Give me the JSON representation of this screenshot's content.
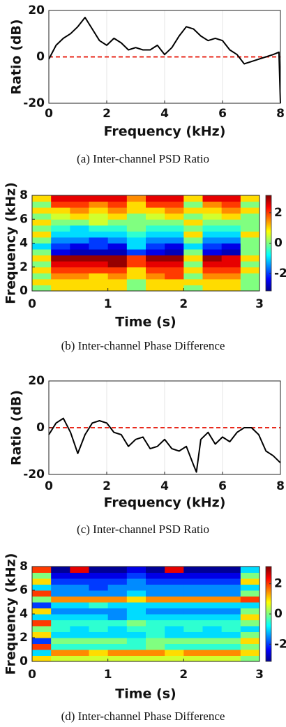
{
  "chart_data": [
    {
      "type": "line",
      "caption": "(a) Inter-channel PSD Ratio",
      "xlabel": "Frequency (kHz)",
      "ylabel": "Ratio (dB)",
      "x": [
        0,
        0.25,
        0.5,
        0.75,
        1,
        1.25,
        1.5,
        1.75,
        2,
        2.25,
        2.5,
        2.75,
        3,
        3.25,
        3.5,
        3.75,
        4,
        4.25,
        4.5,
        4.75,
        5,
        5.25,
        5.5,
        5.75,
        6,
        6.25,
        6.5,
        6.75,
        7,
        7.25,
        7.5,
        7.75,
        7.95,
        8
      ],
      "values": [
        -1,
        5,
        8,
        10,
        13,
        17,
        12,
        7,
        5,
        8,
        6,
        3,
        4,
        3,
        3,
        5,
        1,
        4,
        9,
        13,
        12,
        9,
        7,
        8,
        7,
        3,
        1,
        -3,
        -2,
        -1,
        0,
        1,
        2,
        -20
      ],
      "color": "#000000",
      "reference_line": 0,
      "reference_color": "#e8291c",
      "xlim": [
        0,
        8
      ],
      "xticks": [
        0,
        2,
        4,
        6,
        8
      ],
      "ylim": [
        -20,
        20
      ],
      "yticks": [
        -20,
        0,
        20
      ],
      "grid": true
    },
    {
      "type": "heatmap",
      "caption": "(b) Inter-channel Phase Difference",
      "xlabel": "Time (s)",
      "ylabel": "Frequency (kHz)",
      "xlim": [
        0,
        3
      ],
      "xticks": [
        0,
        1,
        2,
        3
      ],
      "ylim": [
        0,
        8
      ],
      "yticks": [
        0,
        2,
        4,
        6,
        8
      ],
      "clim": [
        -3.14,
        3.14
      ],
      "cbar_ticks": [
        -2,
        0,
        2
      ],
      "colormap": "jet",
      "values": [
        [
          0,
          1,
          1,
          1,
          1,
          0,
          1,
          1,
          0,
          1,
          1,
          0
        ],
        [
          1,
          1,
          1,
          1,
          1,
          0,
          1,
          1,
          1,
          1,
          1,
          0
        ],
        [
          0,
          1.5,
          1.5,
          1,
          1.5,
          1,
          1.5,
          2,
          0,
          1.5,
          1.5,
          0
        ],
        [
          1,
          2,
          2,
          2,
          2,
          1,
          2,
          2,
          1,
          2,
          2,
          1
        ],
        [
          0,
          2.5,
          2.5,
          2.5,
          3,
          2,
          2.5,
          2.5,
          0,
          2.5,
          2.5,
          0
        ],
        [
          1,
          3,
          3,
          3,
          3,
          2,
          3,
          3,
          1,
          3,
          2.5,
          1
        ],
        [
          0,
          -2.5,
          -2.8,
          -2.8,
          -2.8,
          -2,
          -2.5,
          -2.8,
          0,
          -2.5,
          -2.8,
          0
        ],
        [
          -1,
          -2,
          -2.5,
          -2,
          -2.5,
          -1,
          -2,
          -2.5,
          -1,
          -2,
          -2.5,
          0
        ],
        [
          0,
          -1.5,
          -1.5,
          -2,
          -1.5,
          -1,
          -1.5,
          -1.5,
          0,
          -1.5,
          -1.5,
          0
        ],
        [
          1,
          -1,
          -1,
          -1,
          -1,
          -0.5,
          -1,
          -1,
          1,
          -1,
          -1,
          1
        ],
        [
          0,
          -0.5,
          -1,
          -0.5,
          -0.5,
          0,
          -0.5,
          -0.5,
          0,
          -0.5,
          -0.5,
          0
        ],
        [
          1,
          0,
          0,
          0.5,
          0,
          0,
          0,
          0,
          1,
          0,
          0,
          0
        ],
        [
          0,
          0.5,
          1,
          0.5,
          1,
          0,
          0.5,
          1,
          0,
          0.5,
          1,
          0
        ],
        [
          1,
          1,
          1.5,
          1,
          1.5,
          1,
          1,
          1.5,
          1,
          1,
          1.5,
          1
        ],
        [
          0,
          2,
          2,
          1.5,
          2,
          1,
          2,
          2,
          0,
          1.5,
          2,
          0
        ],
        [
          1,
          2.5,
          2.5,
          2.5,
          2.5,
          1.5,
          2.5,
          2.5,
          1,
          2.5,
          2.5,
          1
        ]
      ]
    },
    {
      "type": "line",
      "caption": "(c) Inter-channel PSD Ratio",
      "xlabel": "Frequency (kHz)",
      "ylabel": "Ratio (dB)",
      "x": [
        0,
        0.25,
        0.5,
        0.75,
        1,
        1.25,
        1.5,
        1.75,
        2,
        2.25,
        2.5,
        2.75,
        3,
        3.25,
        3.5,
        3.75,
        4,
        4.25,
        4.5,
        4.75,
        5,
        5.1,
        5.25,
        5.5,
        5.75,
        6,
        6.25,
        6.5,
        6.75,
        7,
        7.25,
        7.5,
        7.75,
        8
      ],
      "values": [
        -3,
        2,
        4,
        -2,
        -11,
        -3,
        2,
        3,
        2,
        -2,
        -3,
        -8,
        -5,
        -4,
        -9,
        -8,
        -5,
        -9,
        -10,
        -8,
        -16,
        -19,
        -5,
        -2,
        -7,
        -4,
        -6,
        -2,
        0,
        0,
        -3,
        -10,
        -12,
        -15
      ],
      "color": "#000000",
      "reference_line": 0,
      "reference_color": "#e8291c",
      "xlim": [
        0,
        8
      ],
      "xticks": [
        0,
        2,
        4,
        6,
        8
      ],
      "ylim": [
        -20,
        20
      ],
      "yticks": [
        -20,
        0,
        20
      ],
      "grid": true
    },
    {
      "type": "heatmap",
      "caption": "(d) Inter-channel Phase Difference",
      "xlabel": "Time (s)",
      "ylabel": "Frequency (kHz)",
      "xlim": [
        0,
        3
      ],
      "xticks": [
        0,
        1,
        2,
        3
      ],
      "ylim": [
        0,
        8
      ],
      "yticks": [
        0,
        2,
        4,
        6,
        8
      ],
      "clim": [
        -3.14,
        3.14
      ],
      "cbar_ticks": [
        -2,
        0,
        2
      ],
      "colormap": "jet",
      "values": [
        [
          1,
          0.5,
          0.5,
          0.5,
          0.5,
          0.5,
          0.5,
          0.5,
          0.5,
          0.5,
          0.5,
          0
        ],
        [
          -1,
          1.5,
          1.5,
          1,
          1.5,
          1.5,
          1.5,
          1,
          1.5,
          1.5,
          1.5,
          1
        ],
        [
          2,
          -0.5,
          -0.5,
          -0.5,
          -0.5,
          -0.5,
          0,
          -0.5,
          -0.5,
          -0.5,
          -0.5,
          0
        ],
        [
          -2,
          0,
          0,
          0,
          0,
          -0.5,
          0,
          0,
          0,
          0,
          0,
          1
        ],
        [
          1,
          -1,
          -1,
          -1,
          -1,
          -1,
          -0.5,
          -1,
          -1,
          -1,
          -1,
          0
        ],
        [
          0,
          -0.5,
          -1,
          -0.5,
          -1,
          -0.5,
          -0.5,
          -1,
          -0.5,
          -1,
          -0.5,
          -1
        ],
        [
          2,
          -0.5,
          -0.5,
          -0.5,
          -0.5,
          0,
          -0.5,
          -0.5,
          -0.5,
          -0.5,
          -0.5,
          0
        ],
        [
          -1,
          -1,
          -1,
          -1,
          -1.5,
          -1,
          -1,
          -1,
          -1,
          -1,
          -1,
          1
        ],
        [
          1,
          -1.5,
          -1.5,
          -1.5,
          -1.5,
          -1,
          -1.5,
          -1.5,
          -1.5,
          -1.5,
          -1.5,
          0
        ],
        [
          -2,
          -1,
          -1,
          -0.5,
          -1,
          -1,
          -1,
          -1,
          -1,
          -1,
          -1,
          -1
        ],
        [
          0,
          1.5,
          1.5,
          1.5,
          1.5,
          1,
          1.5,
          1.5,
          1.5,
          1.5,
          1.5,
          2
        ],
        [
          2,
          -1.5,
          -1.5,
          -1.5,
          -1.5,
          -1,
          -1.5,
          -1.5,
          -1.5,
          -1.5,
          -1.5,
          0
        ],
        [
          -1,
          -1.5,
          -1.5,
          -2,
          -1.5,
          -1.5,
          -1.5,
          -1.5,
          -1.5,
          -1.5,
          -1.5,
          -1
        ],
        [
          1,
          -2,
          -2,
          -2,
          -2,
          -1.5,
          -2,
          -2,
          -2,
          -2,
          -2,
          1
        ],
        [
          0,
          -2.5,
          -2.5,
          -2.5,
          -2.5,
          -2,
          -2.5,
          -2.5,
          -2.5,
          -2.5,
          -2.5,
          0
        ],
        [
          2,
          -3,
          2.5,
          -3,
          -3,
          -2.5,
          -3,
          2.5,
          -3,
          -3,
          -3,
          -1
        ]
      ]
    }
  ]
}
